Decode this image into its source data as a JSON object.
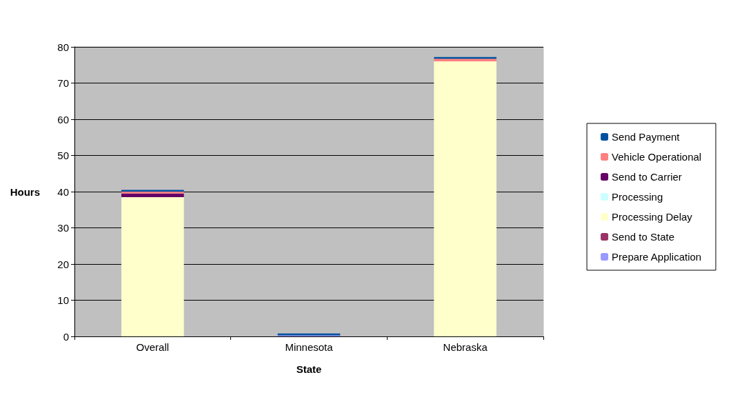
{
  "chart_data": {
    "type": "bar",
    "stacked": true,
    "xlabel": "State",
    "ylabel": "Hours",
    "categories": [
      "Overall",
      "Minnesota",
      "Nebraska"
    ],
    "series": [
      {
        "name": "Prepare Application",
        "color": "#9999ff",
        "values": [
          0,
          0.3,
          0
        ]
      },
      {
        "name": "Send to State",
        "color": "#993366",
        "values": [
          0,
          0,
          0
        ]
      },
      {
        "name": "Processing Delay",
        "color": "#ffffcc",
        "values": [
          38.5,
          0,
          76
        ]
      },
      {
        "name": "Processing",
        "color": "#ccffff",
        "values": [
          0,
          0,
          0
        ]
      },
      {
        "name": "Send to Carrier",
        "color": "#660066",
        "values": [
          1,
          0,
          0
        ]
      },
      {
        "name": "Vehicle Operational",
        "color": "#ff8080",
        "values": [
          0.5,
          0,
          0.7
        ]
      },
      {
        "name": "Send Payment",
        "color": "#0050a0",
        "values": [
          0.5,
          0.5,
          0.5
        ]
      }
    ],
    "ylim": [
      0,
      80
    ],
    "yticks": [
      0,
      10,
      20,
      30,
      40,
      50,
      60,
      70,
      80
    ],
    "grid": "y",
    "legend": "right"
  }
}
